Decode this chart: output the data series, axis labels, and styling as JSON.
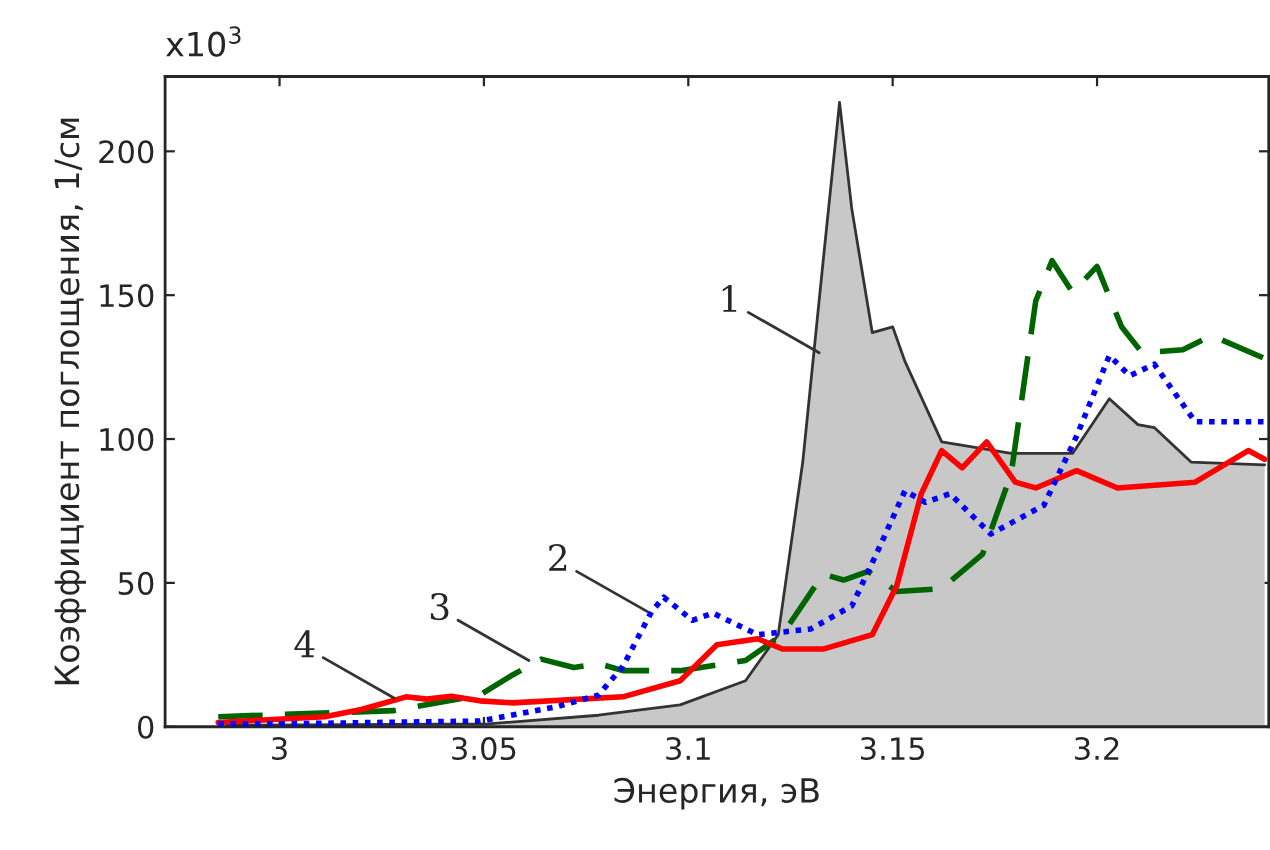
{
  "chart_data": {
    "type": "line",
    "xlabel": "Энергия, эВ",
    "ylabel": "Коэффициент поглощения, 1/см",
    "xlim": [
      2.972,
      3.242
    ],
    "ylim": [
      0,
      226
    ],
    "xticks": [
      3,
      3.05,
      3.1,
      3.15,
      3.2
    ],
    "yticks": [
      0,
      50,
      100,
      150,
      200
    ],
    "grid": false,
    "legend": false,
    "annotations": [
      "x10$^{3}$",
      {
        "text": "1",
        "x": 3.132,
        "y": 130
      },
      {
        "text": "2",
        "x": 3.09,
        "y": 40
      },
      {
        "text": "3",
        "x": 3.061,
        "y": 23
      },
      {
        "text": "4",
        "x": 3.028,
        "y": 10
      }
    ],
    "series": [
      {
        "type": "area",
        "color": "#c8c8c8",
        "x": [
          2.987,
          3.051,
          3.078,
          3.098,
          3.114,
          3.122,
          3.128,
          3.133,
          3.137,
          3.14,
          3.145,
          3.15,
          3.153,
          3.162,
          3.179,
          3.194,
          3.203,
          3.21,
          3.214,
          3.223,
          3.241
        ],
        "values": [
          0.5,
          1,
          4,
          7.6,
          16,
          32,
          92,
          162,
          217,
          180,
          137,
          139,
          127,
          99,
          95,
          95,
          114,
          105,
          104,
          92,
          91
        ]
      },
      {
        "color": "#0000ff",
        "line_style": "dotted",
        "x": [
          2.985,
          3.0,
          3.049,
          3.068,
          3.078,
          3.084,
          3.091,
          3.094,
          3.101,
          3.106,
          3.117,
          3.13,
          3.14,
          3.146,
          3.153,
          3.158,
          3.164,
          3.174,
          3.187,
          3.195,
          3.203,
          3.208,
          3.214,
          3.224,
          3.241
        ],
        "values": [
          1,
          1,
          2,
          7,
          11,
          21,
          40,
          45,
          37,
          39.5,
          32,
          34,
          42,
          60,
          82,
          78,
          81,
          67,
          77,
          101,
          129,
          122,
          126,
          106,
          106
        ]
      },
      {
        "color": "#006400",
        "line_style": "dashed",
        "x": [
          2.985,
          3.028,
          3.049,
          3.057,
          3.064,
          3.072,
          3.078,
          3.084,
          3.098,
          3.114,
          3.123,
          3.133,
          3.138,
          3.144,
          3.151,
          3.162,
          3.172,
          3.179,
          3.185,
          3.189,
          3.194,
          3.2,
          3.206,
          3.211,
          3.221,
          3.228,
          3.241
        ],
        "values": [
          3.5,
          5.6,
          11,
          18,
          23.5,
          20.6,
          22,
          19.5,
          19.5,
          23,
          32,
          53,
          51,
          54,
          47,
          48,
          60,
          88,
          148,
          162,
          151,
          160,
          139,
          130,
          131,
          136,
          128
        ]
      },
      {
        "color": "#ff0000",
        "line_style": "solid",
        "x": [
          2.985,
          3.011,
          3.02,
          3.031,
          3.036,
          3.042,
          3.049,
          3.057,
          3.084,
          3.098,
          3.107,
          3.117,
          3.123,
          3.133,
          3.145,
          3.151,
          3.157,
          3.162,
          3.167,
          3.173,
          3.18,
          3.185,
          3.195,
          3.205,
          3.224,
          3.237,
          3.241
        ],
        "values": [
          1.5,
          3.5,
          6,
          10.4,
          9.6,
          10.6,
          9,
          8.3,
          10.4,
          16,
          28.5,
          30.6,
          27,
          27,
          32,
          49,
          81,
          96,
          90,
          99,
          85,
          83,
          89,
          83,
          85,
          96,
          93
        ]
      }
    ]
  }
}
